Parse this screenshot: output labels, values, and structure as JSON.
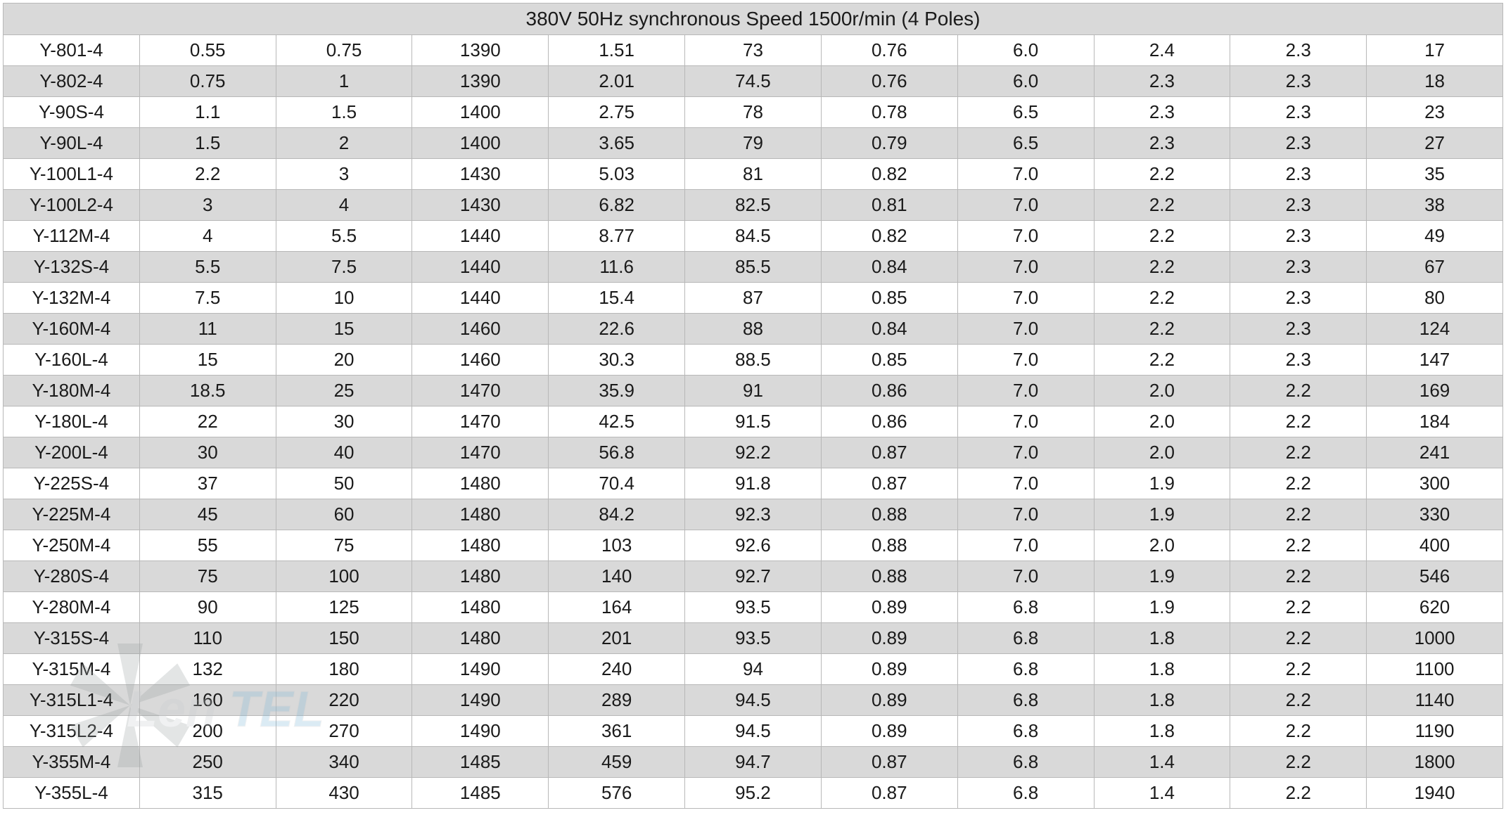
{
  "table": {
    "header": "380V 50Hz synchronous  Speed 1500r/min (4 Poles)",
    "column_count": 11,
    "row_shading": {
      "even_bg": "#d9d9d9",
      "odd_bg": "#ffffff"
    },
    "border_color": "#b8b8b8",
    "font_size_body": 26,
    "font_size_header": 28,
    "text_color": "#1a1a1a",
    "rows": [
      [
        "Y-801-4",
        "0.55",
        "0.75",
        "1390",
        "1.51",
        "73",
        "0.76",
        "6.0",
        "2.4",
        "2.3",
        "17"
      ],
      [
        "Y-802-4",
        "0.75",
        "1",
        "1390",
        "2.01",
        "74.5",
        "0.76",
        "6.0",
        "2.3",
        "2.3",
        "18"
      ],
      [
        "Y-90S-4",
        "1.1",
        "1.5",
        "1400",
        "2.75",
        "78",
        "0.78",
        "6.5",
        "2.3",
        "2.3",
        "23"
      ],
      [
        "Y-90L-4",
        "1.5",
        "2",
        "1400",
        "3.65",
        "79",
        "0.79",
        "6.5",
        "2.3",
        "2.3",
        "27"
      ],
      [
        "Y-100L1-4",
        "2.2",
        "3",
        "1430",
        "5.03",
        "81",
        "0.82",
        "7.0",
        "2.2",
        "2.3",
        "35"
      ],
      [
        "Y-100L2-4",
        "3",
        "4",
        "1430",
        "6.82",
        "82.5",
        "0.81",
        "7.0",
        "2.2",
        "2.3",
        "38"
      ],
      [
        "Y-112M-4",
        "4",
        "5.5",
        "1440",
        "8.77",
        "84.5",
        "0.82",
        "7.0",
        "2.2",
        "2.3",
        "49"
      ],
      [
        "Y-132S-4",
        "5.5",
        "7.5",
        "1440",
        "11.6",
        "85.5",
        "0.84",
        "7.0",
        "2.2",
        "2.3",
        "67"
      ],
      [
        "Y-132M-4",
        "7.5",
        "10",
        "1440",
        "15.4",
        "87",
        "0.85",
        "7.0",
        "2.2",
        "2.3",
        "80"
      ],
      [
        "Y-160M-4",
        "11",
        "15",
        "1460",
        "22.6",
        "88",
        "0.84",
        "7.0",
        "2.2",
        "2.3",
        "124"
      ],
      [
        "Y-160L-4",
        "15",
        "20",
        "1460",
        "30.3",
        "88.5",
        "0.85",
        "7.0",
        "2.2",
        "2.3",
        "147"
      ],
      [
        "Y-180M-4",
        "18.5",
        "25",
        "1470",
        "35.9",
        "91",
        "0.86",
        "7.0",
        "2.0",
        "2.2",
        "169"
      ],
      [
        "Y-180L-4",
        "22",
        "30",
        "1470",
        "42.5",
        "91.5",
        "0.86",
        "7.0",
        "2.0",
        "2.2",
        "184"
      ],
      [
        "Y-200L-4",
        "30",
        "40",
        "1470",
        "56.8",
        "92.2",
        "0.87",
        "7.0",
        "2.0",
        "2.2",
        "241"
      ],
      [
        "Y-225S-4",
        "37",
        "50",
        "1480",
        "70.4",
        "91.8",
        "0.87",
        "7.0",
        "1.9",
        "2.2",
        "300"
      ],
      [
        "Y-225M-4",
        "45",
        "60",
        "1480",
        "84.2",
        "92.3",
        "0.88",
        "7.0",
        "1.9",
        "2.2",
        "330"
      ],
      [
        "Y-250M-4",
        "55",
        "75",
        "1480",
        "103",
        "92.6",
        "0.88",
        "7.0",
        "2.0",
        "2.2",
        "400"
      ],
      [
        "Y-280S-4",
        "75",
        "100",
        "1480",
        "140",
        "92.7",
        "0.88",
        "7.0",
        "1.9",
        "2.2",
        "546"
      ],
      [
        "Y-280M-4",
        "90",
        "125",
        "1480",
        "164",
        "93.5",
        "0.89",
        "6.8",
        "1.9",
        "2.2",
        "620"
      ],
      [
        "Y-315S-4",
        "110",
        "150",
        "1480",
        "201",
        "93.5",
        "0.89",
        "6.8",
        "1.8",
        "2.2",
        "1000"
      ],
      [
        "Y-315M-4",
        "132",
        "180",
        "1490",
        "240",
        "94",
        "0.89",
        "6.8",
        "1.8",
        "2.2",
        "1100"
      ],
      [
        "Y-315L1-4",
        "160",
        "220",
        "1490",
        "289",
        "94.5",
        "0.89",
        "6.8",
        "1.8",
        "2.2",
        "1140"
      ],
      [
        "Y-315L2-4",
        "200",
        "270",
        "1490",
        "361",
        "94.5",
        "0.89",
        "6.8",
        "1.8",
        "2.2",
        "1190"
      ],
      [
        "Y-355M-4",
        "250",
        "340",
        "1485",
        "459",
        "94.7",
        "0.87",
        "6.8",
        "1.4",
        "2.2",
        "1800"
      ],
      [
        "Y-355L-4",
        "315",
        "430",
        "1485",
        "576",
        "95.2",
        "0.87",
        "6.8",
        "1.4",
        "2.2",
        "1940"
      ]
    ]
  },
  "watermark": {
    "text": "LenTEL",
    "fan_color": "#9aa0a3",
    "text_color_light": "#c8cccf",
    "text_color_accent": "#7fb7d6",
    "opacity": 0.28
  }
}
